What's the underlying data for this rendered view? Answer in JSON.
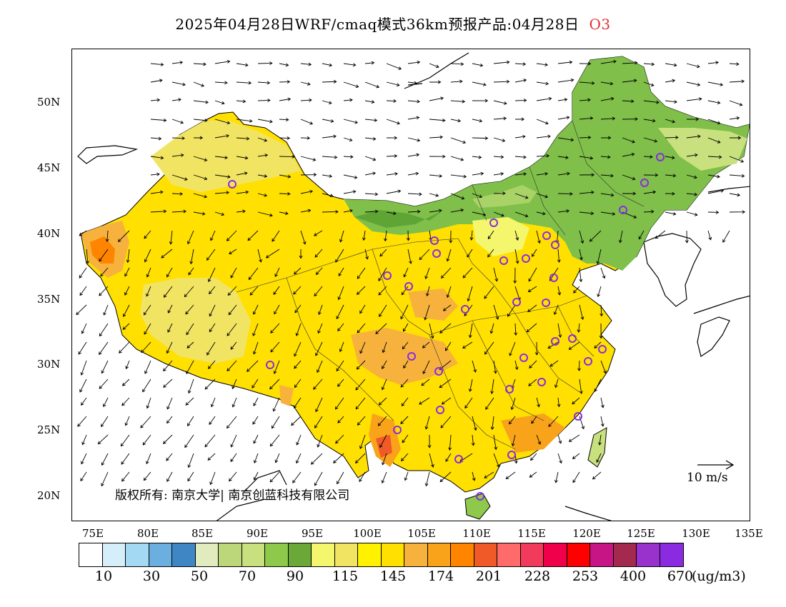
{
  "title": {
    "text": "2025年04月28日WRF/cmaq模式36km预报产品:04月28日",
    "pollutant": "O3"
  },
  "map": {
    "lat_labels": [
      "50N",
      "45N",
      "40N",
      "35N",
      "30N",
      "25N",
      "20N"
    ],
    "lon_labels": [
      "75E",
      "80E",
      "85E",
      "90E",
      "95E",
      "100E",
      "105E",
      "110E",
      "115E",
      "120E",
      "125E",
      "130E",
      "135E"
    ],
    "copyright": "版权所有: 南京大学| 南京创蓝科技有限公司",
    "wind_scale_label": "10 m/s",
    "station_color": "#8a2be2"
  },
  "colorbar": {
    "colors": [
      "#ffffff",
      "#d6eefa",
      "#a3d9f2",
      "#6baee0",
      "#3e87c4",
      "#e1ebbd",
      "#bcd67a",
      "#c9e07e",
      "#8fc94c",
      "#6aa837",
      "#f4f76e",
      "#f2e463",
      "#fff200",
      "#ffe000",
      "#f6b23c",
      "#f9a31b",
      "#ff8400",
      "#f05a28",
      "#ff6b6b",
      "#f23b5c",
      "#f0004a",
      "#ff0000",
      "#c71585",
      "#a3294f",
      "#9932cc",
      "#8a2be2"
    ],
    "labels": [
      "10",
      "30",
      "50",
      "70",
      "90",
      "115",
      "145",
      "174",
      "201",
      "228",
      "253",
      "400",
      "670"
    ],
    "unit": "(ug/m3)"
  }
}
